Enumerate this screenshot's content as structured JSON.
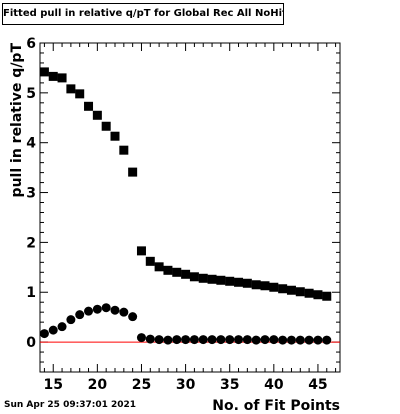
{
  "title": "Fitted pull in relative q/pT for Global Rec All NoHits",
  "timestamp": "Sun Apr 25 09:37:01 2021",
  "chart_data": {
    "type": "scatter",
    "xlabel": "No. of Fit Points",
    "ylabel": "pull in relative q/pT",
    "xlim": [
      13.5,
      47.5
    ],
    "ylim": [
      -0.6,
      6.0
    ],
    "xticks": [
      "15",
      "20",
      "25",
      "30",
      "35",
      "40",
      "45"
    ],
    "yticks": [
      "0",
      "1",
      "2",
      "3",
      "4",
      "5",
      "6"
    ],
    "reference_line": {
      "y": 0,
      "color": "#ff0000"
    },
    "series": [
      {
        "marker": "square",
        "color": "#000000",
        "x": [
          14,
          15,
          16,
          17,
          18,
          19,
          20,
          21,
          22,
          23,
          24,
          25,
          26,
          27,
          28,
          29,
          30,
          31,
          32,
          33,
          34,
          35,
          36,
          37,
          38,
          39,
          40,
          41,
          42,
          43,
          44,
          45,
          46
        ],
        "y": [
          5.42,
          5.33,
          5.3,
          5.08,
          4.98,
          4.73,
          4.55,
          4.33,
          4.13,
          3.85,
          3.41,
          1.83,
          1.62,
          1.51,
          1.44,
          1.4,
          1.36,
          1.31,
          1.28,
          1.26,
          1.24,
          1.22,
          1.2,
          1.18,
          1.15,
          1.13,
          1.1,
          1.07,
          1.04,
          1.01,
          0.98,
          0.95,
          0.92
        ]
      },
      {
        "marker": "circle",
        "color": "#000000",
        "x": [
          14,
          15,
          16,
          17,
          18,
          19,
          20,
          21,
          22,
          23,
          24,
          25,
          26,
          27,
          28,
          29,
          30,
          31,
          32,
          33,
          34,
          35,
          36,
          37,
          38,
          39,
          40,
          41,
          42,
          43,
          44,
          45,
          46
        ],
        "y": [
          0.17,
          0.24,
          0.31,
          0.45,
          0.55,
          0.62,
          0.66,
          0.69,
          0.64,
          0.6,
          0.51,
          0.09,
          0.06,
          0.05,
          0.04,
          0.05,
          0.05,
          0.05,
          0.05,
          0.05,
          0.05,
          0.05,
          0.05,
          0.05,
          0.04,
          0.05,
          0.05,
          0.04,
          0.04,
          0.04,
          0.04,
          0.04,
          0.04
        ]
      }
    ]
  }
}
